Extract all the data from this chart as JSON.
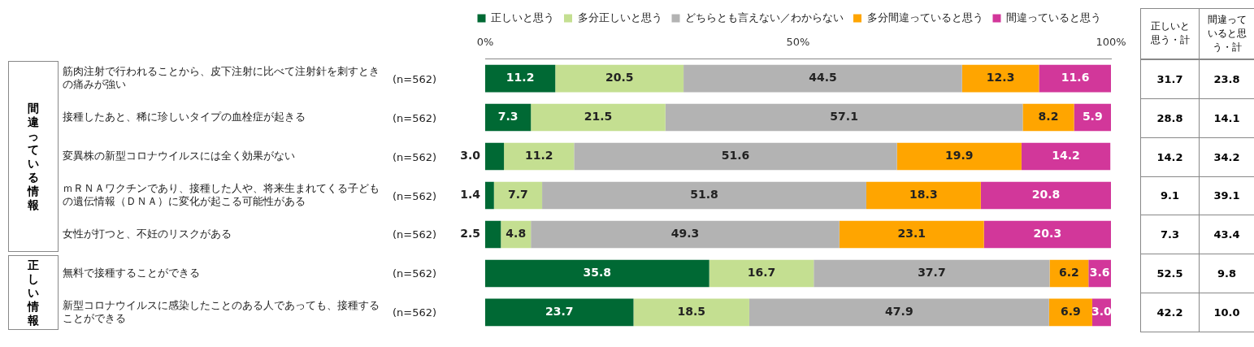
{
  "chart_data": {
    "type": "bar",
    "orientation": "horizontal",
    "stacked": true,
    "grid": false,
    "legend": "top right",
    "categories": [
      "筋肉注射で行われることから、皮下注射に比べて注射針を刺すときの痛みが強い",
      "接種したあと、稀に珍しいタイプの血栓症が起きる",
      "変異株の新型コロナウイルスには全く効果がない",
      "ｍＲＮＡワクチンであり、接種した人や、将来生まれてくる子どもの遺伝情報（ＤＮＡ）に変化が起こる可能性がある",
      "女性が打つと、不妊のリスクがある",
      "無料で接種することができる",
      "新型コロナウイルスに感染したことのある人であっても、接種することができる"
    ],
    "xlim": [
      0,
      100
    ],
    "xticks": [
      {
        "value": 0,
        "label": "0%"
      },
      {
        "value": 50,
        "label": "50%"
      },
      {
        "value": 100,
        "label": "100%"
      }
    ],
    "series": [
      {
        "name": "正しいと思う",
        "color": "#006934",
        "values": [
          11.2,
          7.3,
          3.0,
          1.4,
          2.5,
          35.8,
          23.7
        ],
        "value_labels": [
          "11.2",
          "7.3",
          "3.0",
          "1.4",
          "2.5",
          "35.8",
          "23.7"
        ]
      },
      {
        "name": "多分正しいと思う",
        "color": "#c4df91",
        "values": [
          20.5,
          21.5,
          11.2,
          7.7,
          4.8,
          16.7,
          18.5
        ],
        "value_labels": [
          "20.5",
          "21.5",
          "11.2",
          "7.7",
          "4.8",
          "16.7",
          "18.5"
        ]
      },
      {
        "name": "どちらとも言えない／わからない",
        "color": "#b3b3b3",
        "values": [
          44.5,
          57.1,
          51.6,
          51.8,
          49.3,
          37.7,
          47.9
        ],
        "value_labels": [
          "44.5",
          "57.1",
          "51.6",
          "51.8",
          "49.3",
          "37.7",
          "47.9"
        ]
      },
      {
        "name": "多分間違っていると思う",
        "color": "#ffa500",
        "values": [
          12.3,
          8.2,
          19.9,
          18.3,
          23.1,
          6.2,
          6.9
        ],
        "value_labels": [
          "12.3",
          "8.2",
          "19.9",
          "18.3",
          "23.1",
          "6.2",
          "6.9"
        ]
      },
      {
        "name": "間違っていると思う",
        "color": "#d2379a",
        "values": [
          11.6,
          5.9,
          14.2,
          20.8,
          20.3,
          3.6,
          3.0
        ],
        "value_labels": [
          "11.6",
          "5.9",
          "14.2",
          "20.8",
          "20.3",
          "3.6",
          "3.0"
        ]
      }
    ],
    "annotations": [
      "間違っている情報",
      "正しい情報",
      "正しいと思う・計",
      "間違っていると思う・計",
      "(n=562)",
      "(n=562)",
      "(n=562)",
      "(n=562)",
      "(n=562)",
      "(n=562)",
      "(n=562)",
      "31.7",
      "23.8",
      "28.8",
      "14.1",
      "14.2",
      "34.2",
      "9.1",
      "39.1",
      "7.3",
      "43.4",
      "52.5",
      "9.8",
      "42.2",
      "10.0"
    ]
  }
}
